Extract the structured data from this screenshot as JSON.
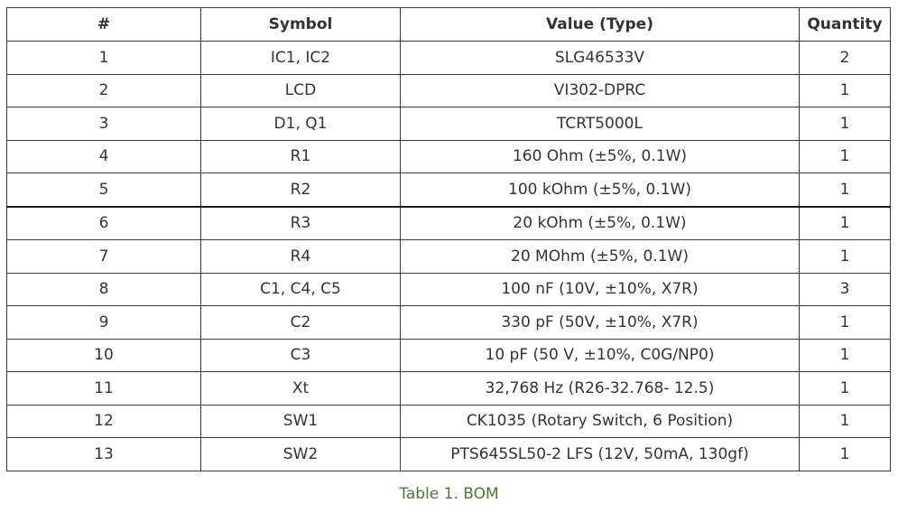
{
  "table": {
    "headers": [
      "#",
      "Symbol",
      "Value (Type)",
      "Quantity"
    ],
    "rows": [
      {
        "num": "1",
        "symbol": "IC1, IC2",
        "value": "SLG46533V",
        "qty": "2"
      },
      {
        "num": "2",
        "symbol": "LCD",
        "value": "VI302-DPRC",
        "qty": "1"
      },
      {
        "num": "3",
        "symbol": "D1, Q1",
        "value": "TCRT5000L",
        "qty": "1"
      },
      {
        "num": "4",
        "symbol": "R1",
        "value": "160 Ohm (±5%, 0.1W)",
        "qty": "1"
      },
      {
        "num": "5",
        "symbol": "R2",
        "value": "100 kOhm (±5%, 0.1W)",
        "qty": "1"
      },
      {
        "num": "6",
        "symbol": "R3",
        "value": "20 kOhm (±5%, 0.1W)",
        "qty": "1"
      },
      {
        "num": "7",
        "symbol": "R4",
        "value": "20 MOhm (±5%, 0.1W)",
        "qty": "1"
      },
      {
        "num": "8",
        "symbol": "C1, C4, C5",
        "value": "100 nF (10V, ±10%, X7R)",
        "qty": "3"
      },
      {
        "num": "9",
        "symbol": "C2",
        "value": "330 pF (50V, ±10%, X7R)",
        "qty": "1"
      },
      {
        "num": "10",
        "symbol": "C3",
        "value": "10 pF (50 V, ±10%, C0G/NP0)",
        "qty": "1"
      },
      {
        "num": "11",
        "symbol": "Xt",
        "value": "32,768 Hz (R26-32.768- 12.5)",
        "qty": "1"
      },
      {
        "num": "12",
        "symbol": "SW1",
        "value": "CK1035 (Rotary Switch, 6 Position)",
        "qty": "1"
      },
      {
        "num": "13",
        "symbol": "SW2",
        "value": "PTS645SL50-2 LFS (12V, 50mA, 130gf)",
        "qty": "1"
      }
    ]
  },
  "caption": "Table 1. BOM",
  "colors": {
    "text": "#333333",
    "border": "#3a3a3a",
    "caption": "#4a7a2e"
  }
}
